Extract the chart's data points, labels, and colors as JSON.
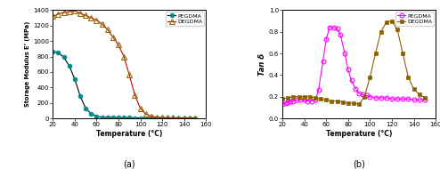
{
  "chart_a": {
    "title": "(a)",
    "xlabel": "Temperature (°C)",
    "ylabel": "Storage Modulus E’ (MPa)",
    "xlim": [
      20,
      160
    ],
    "ylim": [
      0,
      1400
    ],
    "yticks": [
      0,
      200,
      400,
      600,
      800,
      1000,
      1200,
      1400
    ],
    "xticks": [
      20,
      40,
      60,
      80,
      100,
      120,
      140,
      160
    ],
    "pegdma_x": [
      20,
      25,
      30,
      35,
      40,
      45,
      50,
      55,
      60,
      65,
      70,
      75,
      80,
      85,
      90,
      95,
      100,
      105,
      110,
      115,
      120,
      125,
      130,
      135,
      140,
      145,
      150
    ],
    "pegdma_y": [
      860,
      850,
      790,
      680,
      510,
      290,
      130,
      60,
      25,
      15,
      12,
      10,
      8,
      7,
      6,
      5,
      5,
      4,
      3,
      3,
      3,
      2,
      2,
      2,
      2,
      2,
      2
    ],
    "degdma_x": [
      20,
      25,
      30,
      35,
      40,
      45,
      50,
      55,
      60,
      65,
      70,
      75,
      80,
      85,
      90,
      95,
      100,
      105,
      110,
      115,
      120,
      125,
      130,
      135,
      140,
      145,
      150
    ],
    "degdma_y": [
      1320,
      1350,
      1370,
      1380,
      1390,
      1360,
      1330,
      1300,
      1270,
      1220,
      1150,
      1050,
      950,
      800,
      560,
      300,
      130,
      55,
      25,
      15,
      10,
      8,
      6,
      5,
      5,
      4,
      4
    ],
    "pegdma_line_color": "#000000",
    "pegdma_marker_color": "#008B8B",
    "degdma_line_color": "#cc0000",
    "degdma_marker_color": "#8B7000",
    "pegdma_marker": "o",
    "degdma_marker": "^"
  },
  "chart_b": {
    "title": "(b)",
    "xlabel": "Temperature (°C)",
    "ylabel": "Tan δ",
    "xlim": [
      20,
      160
    ],
    "ylim": [
      0.0,
      1.0
    ],
    "yticks": [
      0.0,
      0.2,
      0.4,
      0.6,
      0.8,
      1.0
    ],
    "xticks": [
      20,
      40,
      60,
      80,
      100,
      120,
      140,
      160
    ],
    "pegdma_x": [
      20,
      23,
      25,
      27,
      30,
      33,
      36,
      40,
      43,
      47,
      50,
      53,
      57,
      60,
      63,
      67,
      70,
      73,
      77,
      80,
      83,
      87,
      90,
      93,
      97,
      100,
      105,
      110,
      115,
      120,
      125,
      130,
      135,
      140,
      145,
      150
    ],
    "pegdma_y": [
      0.13,
      0.14,
      0.15,
      0.16,
      0.16,
      0.17,
      0.17,
      0.17,
      0.16,
      0.16,
      0.17,
      0.26,
      0.53,
      0.73,
      0.84,
      0.84,
      0.83,
      0.77,
      0.6,
      0.45,
      0.35,
      0.27,
      0.23,
      0.22,
      0.21,
      0.2,
      0.19,
      0.19,
      0.19,
      0.18,
      0.18,
      0.18,
      0.18,
      0.17,
      0.17,
      0.17
    ],
    "degdma_x": [
      20,
      25,
      30,
      35,
      40,
      45,
      50,
      55,
      60,
      65,
      70,
      75,
      80,
      85,
      90,
      95,
      100,
      105,
      110,
      115,
      120,
      125,
      130,
      135,
      140,
      145,
      150
    ],
    "degdma_y": [
      0.18,
      0.19,
      0.2,
      0.2,
      0.2,
      0.2,
      0.19,
      0.18,
      0.17,
      0.16,
      0.16,
      0.15,
      0.14,
      0.14,
      0.13,
      0.2,
      0.38,
      0.6,
      0.8,
      0.89,
      0.9,
      0.82,
      0.6,
      0.38,
      0.27,
      0.22,
      0.19
    ],
    "pegdma_line_color": "#FF00FF",
    "pegdma_marker_color": "#FF00FF",
    "degdma_line_color": "#8B6000",
    "degdma_marker_color": "#8B6000",
    "pegdma_marker": "o",
    "degdma_marker": "s"
  }
}
